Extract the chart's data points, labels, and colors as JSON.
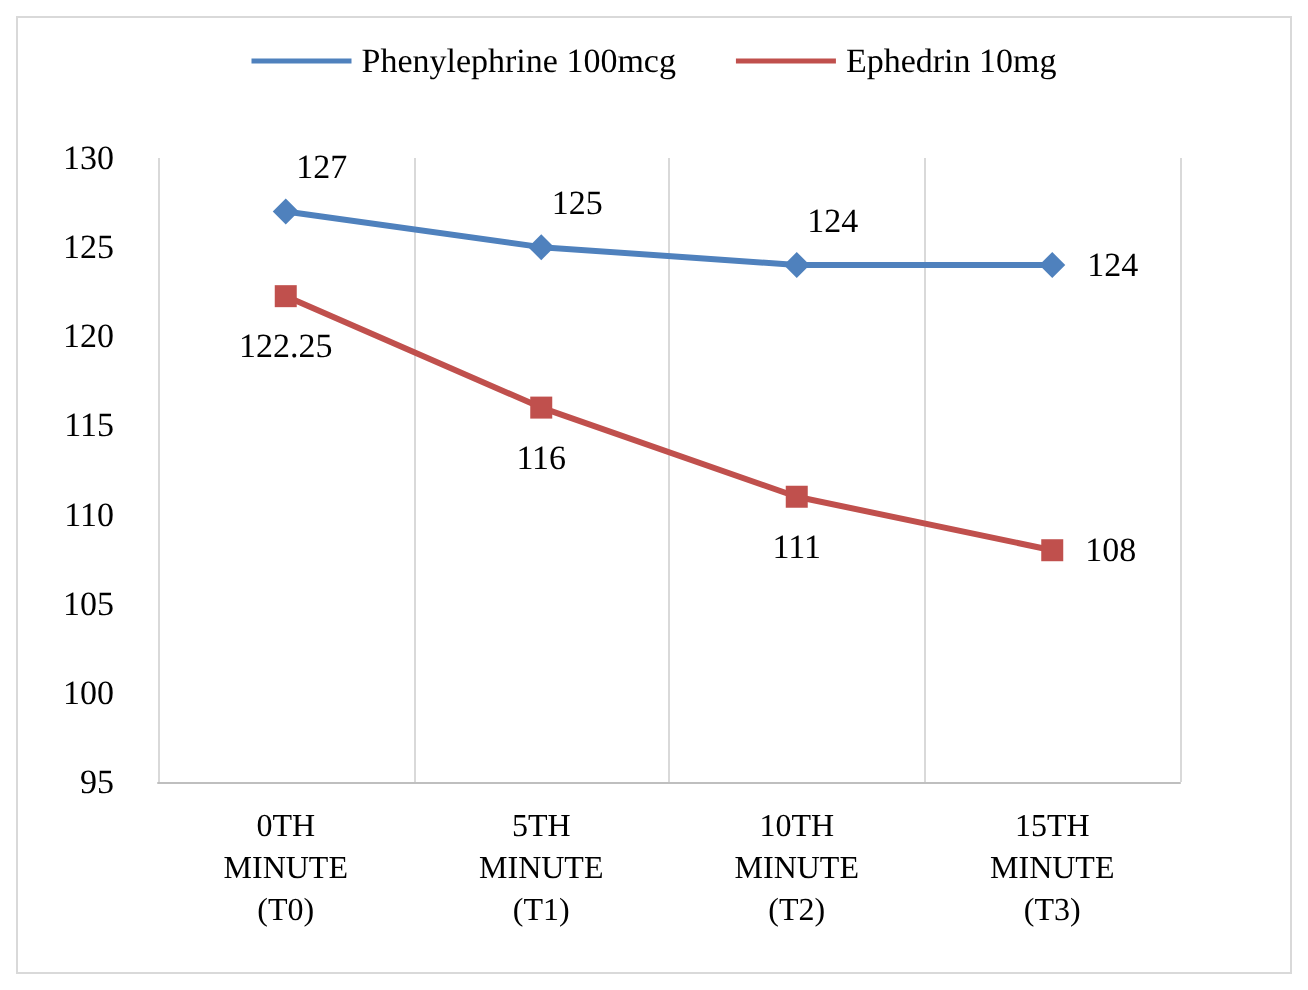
{
  "chart_data": {
    "type": "line",
    "categories": [
      "0TH\nMINUTE\n(T0)",
      "5TH\nMINUTE\n(T1)",
      "10TH\nMINUTE\n(T2)",
      "15TH\nMINUTE\n(T3)"
    ],
    "series": [
      {
        "name": "Phenylephrine 100mcg",
        "color": "#4f81bd",
        "marker": "diamond",
        "values": [
          127,
          125,
          124,
          124
        ]
      },
      {
        "name": "Ephedrin 10mg",
        "color": "#c0504d",
        "marker": "square",
        "values": [
          122.25,
          116,
          111,
          108
        ]
      }
    ],
    "ylim": [
      95,
      130
    ],
    "yticks": [
      95,
      100,
      105,
      110,
      115,
      120,
      125,
      130
    ],
    "grid": "x",
    "legend": "top",
    "data_labels": true
  }
}
